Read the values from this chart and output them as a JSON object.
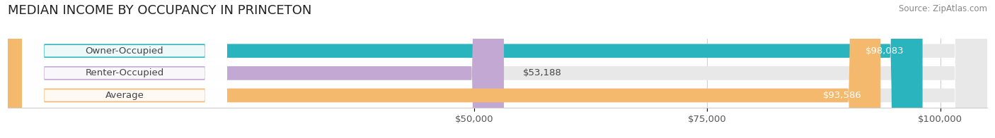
{
  "title": "MEDIAN INCOME BY OCCUPANCY IN PRINCETON",
  "source": "Source: ZipAtlas.com",
  "categories": [
    "Owner-Occupied",
    "Renter-Occupied",
    "Average"
  ],
  "values": [
    98083,
    53188,
    93586
  ],
  "bar_colors": [
    "#2ab5be",
    "#c4a8d4",
    "#f5b96e"
  ],
  "bar_bg_color": "#e8e8e8",
  "label_bg_color": "#ffffff",
  "value_labels": [
    "$98,083",
    "$53,188",
    "$93,586"
  ],
  "xmin": 0,
  "xmax": 105000,
  "xticks": [
    50000,
    75000,
    100000
  ],
  "xtick_labels": [
    "$50,000",
    "$75,000",
    "$100,000"
  ],
  "label_fontsize": 9.5,
  "title_fontsize": 13,
  "source_fontsize": 8.5,
  "bar_height": 0.62,
  "figsize": [
    14.06,
    1.96
  ],
  "dpi": 100,
  "grid_color": "#cccccc",
  "text_dark": "#444444",
  "text_white": "#ffffff",
  "text_gray": "#888888"
}
